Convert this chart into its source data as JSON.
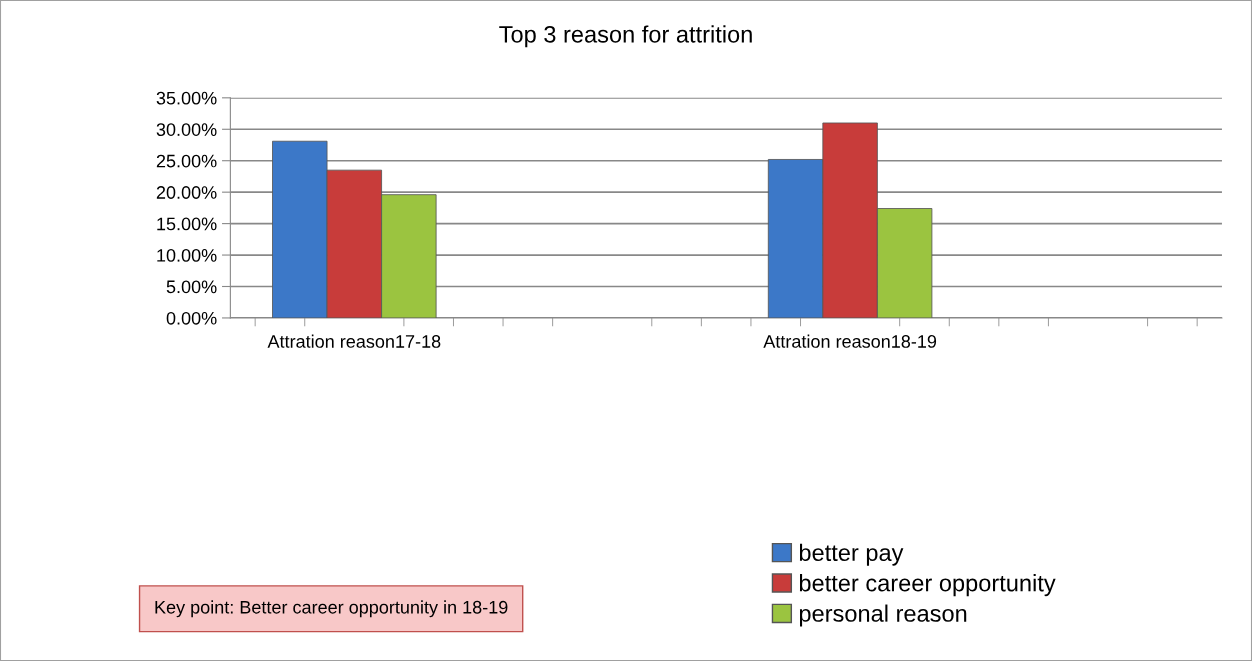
{
  "chart_data": {
    "type": "bar",
    "title": "Top 3 reason for attrition",
    "categories": [
      "Attration reason17-18",
      null,
      "Attration reason18-19",
      null
    ],
    "series": [
      {
        "name": "better pay",
        "color": "#3c78c8",
        "values": [
          28.1,
          null,
          25.2,
          null
        ]
      },
      {
        "name": "better career opportunity",
        "color": "#c83c3a",
        "values": [
          23.5,
          null,
          31.0,
          null
        ]
      },
      {
        "name": "personal reason",
        "color": "#9bc440",
        "values": [
          19.6,
          null,
          17.4,
          null
        ]
      }
    ],
    "ylim": [
      0,
      35
    ],
    "yticks": [
      {
        "value": 0,
        "label": "0.00%"
      },
      {
        "value": 5,
        "label": "5.00%"
      },
      {
        "value": 10,
        "label": "10.00%"
      },
      {
        "value": 15,
        "label": "15.00%"
      },
      {
        "value": 20,
        "label": "20.00%"
      },
      {
        "value": 25,
        "label": "25.00%"
      },
      {
        "value": 30,
        "label": "30.00%"
      },
      {
        "value": 35,
        "label": "35.00%"
      }
    ],
    "grid": "y",
    "legend": "bottom right",
    "annotations": [
      "Key point: Better career opportunity in 18-19"
    ]
  }
}
